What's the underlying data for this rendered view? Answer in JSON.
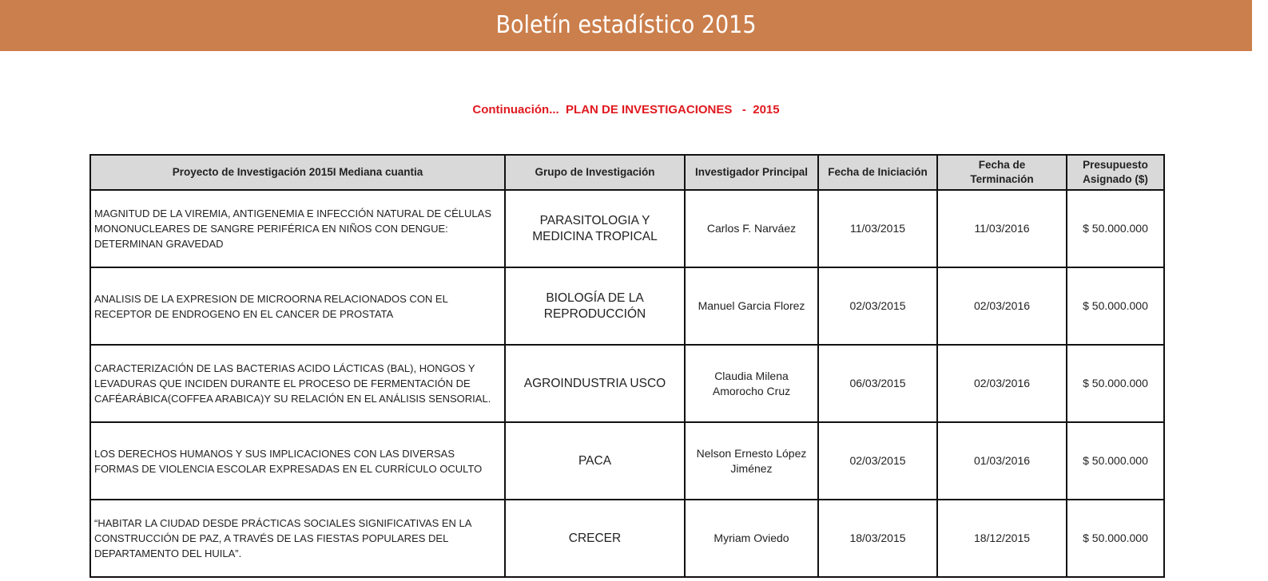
{
  "header": {
    "title": "Boletín estadístico 2015"
  },
  "subtitle": "Continuación...  PLAN DE INVESTIGACIONES   -  2015",
  "table": {
    "columns": [
      "Proyecto de Investigación 2015I Mediana cuantia",
      "Grupo de Investigación",
      "Investigador Principal",
      "Fecha de Iniciación",
      "Fecha de Terminación",
      "Presupuesto Asignado ($)"
    ],
    "rows": [
      [
        "MAGNITUD DE LA VIREMIA, ANTIGENEMIA E INFECCIÓN NATURAL DE CÉLULAS MONONUCLEARES DE SANGRE PERIFÉRICA EN NIÑOS CON DENGUE: DETERMINAN GRAVEDAD",
        "PARASITOLOGIA Y MEDICINA TROPICAL",
        "Carlos F. Narváez",
        "11/03/2015",
        "11/03/2016",
        "$ 50.000.000"
      ],
      [
        "ANALISIS DE LA EXPRESION DE MICROORNA RELACIONADOS CON EL RECEPTOR DE ENDROGENO EN EL CANCER DE PROSTATA",
        "BIOLOGÍA DE LA REPRODUCCIÓN",
        "Manuel Garcia Florez",
        "02/03/2015",
        "02/03/2016",
        "$ 50.000.000"
      ],
      [
        "CARACTERIZACIÓN DE LAS BACTERIAS ACIDO LÁCTICAS (BAL), HONGOS Y LEVADURAS QUE INCIDEN DURANTE EL PROCESO DE FERMENTACIÓN DE CAFÉARÁBICA(COFFEA ARABICA)Y SU RELACIÓN EN EL ANÁLISIS SENSORIAL.",
        "AGROINDUSTRIA USCO",
        "Claudia Milena Amorocho Cruz",
        "06/03/2015",
        "02/03/2016",
        "$ 50.000.000"
      ],
      [
        " LOS DERECHOS HUMANOS Y SUS IMPLICACIONES CON LAS DIVERSAS FORMAS DE VIOLENCIA ESCOLAR EXPRESADAS EN EL CURRÍCULO OCULTO",
        "PACA",
        "Nelson Ernesto López Jiménez",
        "02/03/2015",
        "01/03/2016",
        "$ 50.000.000"
      ],
      [
        "“HABITAR LA CIUDAD DESDE PRÁCTICAS SOCIALES SIGNIFICATIVAS EN LA CONSTRUCCIÓN DE PAZ, A TRAVÉS DE LAS FIESTAS POPULARES DEL DEPARTAMENTO DEL HUILA”.",
        "CRECER",
        "Myriam Oviedo",
        "18/03/2015",
        "18/12/2015",
        "$ 50.000.000"
      ]
    ]
  }
}
